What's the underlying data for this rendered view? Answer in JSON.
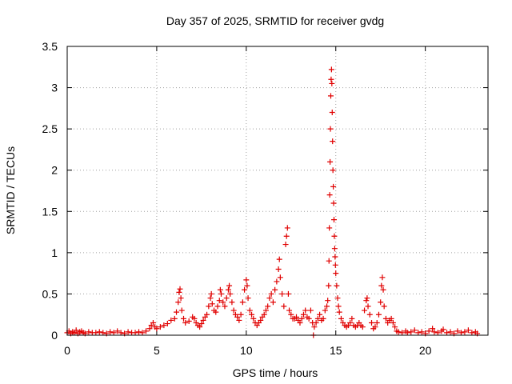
{
  "chart_data": {
    "type": "scatter",
    "title": "Day 357 of 2025, SRMTID for receiver gvdg",
    "xlabel": "GPS time / hours",
    "ylabel": "SRMTID / TECUs",
    "xlim": [
      0,
      23.5
    ],
    "ylim": [
      0,
      3.5
    ],
    "x_ticks": [
      0,
      5,
      10,
      15,
      20
    ],
    "x_tick_labels": [
      "0",
      "5",
      "10",
      "15",
      "20"
    ],
    "y_ticks": [
      0,
      0.5,
      1,
      1.5,
      2,
      2.5,
      3,
      3.5
    ],
    "y_tick_labels": [
      "0",
      "0.5",
      "1",
      "1.5",
      "2",
      "2.5",
      "3",
      "3.5"
    ],
    "grid": true,
    "marker": "plus",
    "series": [
      {
        "name": "gvdg",
        "color": "#e00000",
        "points": [
          [
            0.0,
            0.03
          ],
          [
            0.1,
            0.05
          ],
          [
            0.2,
            0.02
          ],
          [
            0.3,
            0.04
          ],
          [
            0.4,
            0.03
          ],
          [
            0.5,
            0.06
          ],
          [
            0.6,
            0.02
          ],
          [
            0.7,
            0.04
          ],
          [
            0.8,
            0.05
          ],
          [
            0.9,
            0.03
          ],
          [
            1.0,
            0.02
          ],
          [
            1.2,
            0.04
          ],
          [
            1.4,
            0.03
          ],
          [
            1.6,
            0.03
          ],
          [
            1.8,
            0.04
          ],
          [
            2.0,
            0.03
          ],
          [
            2.2,
            0.02
          ],
          [
            2.4,
            0.04
          ],
          [
            2.6,
            0.03
          ],
          [
            2.8,
            0.05
          ],
          [
            3.0,
            0.03
          ],
          [
            3.2,
            0.02
          ],
          [
            3.4,
            0.04
          ],
          [
            3.6,
            0.03
          ],
          [
            3.8,
            0.03
          ],
          [
            4.0,
            0.04
          ],
          [
            4.2,
            0.03
          ],
          [
            4.4,
            0.05
          ],
          [
            4.6,
            0.08
          ],
          [
            4.7,
            0.12
          ],
          [
            4.8,
            0.15
          ],
          [
            4.9,
            0.1
          ],
          [
            5.0,
            0.08
          ],
          [
            5.2,
            0.1
          ],
          [
            5.4,
            0.12
          ],
          [
            5.6,
            0.14
          ],
          [
            5.8,
            0.18
          ],
          [
            6.0,
            0.2
          ],
          [
            6.1,
            0.28
          ],
          [
            6.2,
            0.4
          ],
          [
            6.25,
            0.52
          ],
          [
            6.3,
            0.56
          ],
          [
            6.35,
            0.45
          ],
          [
            6.4,
            0.3
          ],
          [
            6.5,
            0.2
          ],
          [
            6.6,
            0.15
          ],
          [
            6.8,
            0.17
          ],
          [
            7.0,
            0.22
          ],
          [
            7.1,
            0.2
          ],
          [
            7.2,
            0.15
          ],
          [
            7.3,
            0.12
          ],
          [
            7.4,
            0.1
          ],
          [
            7.5,
            0.14
          ],
          [
            7.6,
            0.18
          ],
          [
            7.7,
            0.22
          ],
          [
            7.8,
            0.25
          ],
          [
            7.9,
            0.35
          ],
          [
            8.0,
            0.45
          ],
          [
            8.05,
            0.5
          ],
          [
            8.1,
            0.38
          ],
          [
            8.2,
            0.3
          ],
          [
            8.3,
            0.28
          ],
          [
            8.4,
            0.35
          ],
          [
            8.5,
            0.42
          ],
          [
            8.55,
            0.55
          ],
          [
            8.6,
            0.5
          ],
          [
            8.7,
            0.4
          ],
          [
            8.8,
            0.35
          ],
          [
            8.9,
            0.45
          ],
          [
            9.0,
            0.55
          ],
          [
            9.05,
            0.6
          ],
          [
            9.1,
            0.5
          ],
          [
            9.2,
            0.4
          ],
          [
            9.3,
            0.3
          ],
          [
            9.4,
            0.25
          ],
          [
            9.5,
            0.22
          ],
          [
            9.6,
            0.18
          ],
          [
            9.7,
            0.25
          ],
          [
            9.8,
            0.4
          ],
          [
            9.9,
            0.55
          ],
          [
            10.0,
            0.67
          ],
          [
            10.05,
            0.6
          ],
          [
            10.1,
            0.45
          ],
          [
            10.2,
            0.3
          ],
          [
            10.3,
            0.25
          ],
          [
            10.4,
            0.2
          ],
          [
            10.5,
            0.15
          ],
          [
            10.6,
            0.12
          ],
          [
            10.7,
            0.15
          ],
          [
            10.8,
            0.18
          ],
          [
            10.9,
            0.22
          ],
          [
            11.0,
            0.25
          ],
          [
            11.1,
            0.3
          ],
          [
            11.2,
            0.35
          ],
          [
            11.3,
            0.45
          ],
          [
            11.4,
            0.5
          ],
          [
            11.5,
            0.4
          ],
          [
            11.6,
            0.55
          ],
          [
            11.7,
            0.65
          ],
          [
            11.8,
            0.8
          ],
          [
            11.85,
            0.92
          ],
          [
            11.9,
            0.7
          ],
          [
            12.0,
            0.5
          ],
          [
            12.1,
            0.35
          ],
          [
            12.2,
            1.1
          ],
          [
            12.25,
            1.2
          ],
          [
            12.3,
            1.3
          ],
          [
            12.35,
            0.5
          ],
          [
            12.4,
            0.3
          ],
          [
            12.5,
            0.25
          ],
          [
            12.6,
            0.2
          ],
          [
            12.7,
            0.2
          ],
          [
            12.8,
            0.22
          ],
          [
            12.9,
            0.18
          ],
          [
            13.0,
            0.15
          ],
          [
            13.1,
            0.2
          ],
          [
            13.2,
            0.25
          ],
          [
            13.3,
            0.3
          ],
          [
            13.4,
            0.22
          ],
          [
            13.5,
            0.2
          ],
          [
            13.6,
            0.3
          ],
          [
            13.7,
            0.15
          ],
          [
            13.75,
            0.0
          ],
          [
            13.8,
            0.1
          ],
          [
            13.9,
            0.15
          ],
          [
            14.0,
            0.2
          ],
          [
            14.1,
            0.25
          ],
          [
            14.2,
            0.18
          ],
          [
            14.3,
            0.2
          ],
          [
            14.4,
            0.3
          ],
          [
            14.5,
            0.35
          ],
          [
            14.55,
            0.42
          ],
          [
            14.6,
            0.6
          ],
          [
            14.62,
            0.9
          ],
          [
            14.64,
            1.3
          ],
          [
            14.66,
            1.7
          ],
          [
            14.68,
            2.1
          ],
          [
            14.7,
            2.5
          ],
          [
            14.72,
            2.9
          ],
          [
            14.74,
            3.1
          ],
          [
            14.76,
            3.22
          ],
          [
            14.78,
            3.05
          ],
          [
            14.8,
            2.7
          ],
          [
            14.82,
            2.35
          ],
          [
            14.84,
            2.0
          ],
          [
            14.86,
            1.8
          ],
          [
            14.88,
            1.6
          ],
          [
            14.9,
            1.4
          ],
          [
            14.92,
            1.2
          ],
          [
            14.94,
            1.05
          ],
          [
            14.96,
            0.95
          ],
          [
            14.98,
            0.85
          ],
          [
            15.0,
            0.75
          ],
          [
            15.05,
            0.6
          ],
          [
            15.1,
            0.45
          ],
          [
            15.15,
            0.35
          ],
          [
            15.2,
            0.28
          ],
          [
            15.3,
            0.2
          ],
          [
            15.4,
            0.15
          ],
          [
            15.5,
            0.12
          ],
          [
            15.6,
            0.1
          ],
          [
            15.7,
            0.12
          ],
          [
            15.8,
            0.15
          ],
          [
            15.9,
            0.2
          ],
          [
            16.0,
            0.12
          ],
          [
            16.1,
            0.1
          ],
          [
            16.2,
            0.12
          ],
          [
            16.3,
            0.15
          ],
          [
            16.4,
            0.12
          ],
          [
            16.5,
            0.1
          ],
          [
            16.6,
            0.3
          ],
          [
            16.7,
            0.42
          ],
          [
            16.75,
            0.45
          ],
          [
            16.8,
            0.35
          ],
          [
            16.9,
            0.25
          ],
          [
            17.0,
            0.15
          ],
          [
            17.1,
            0.08
          ],
          [
            17.2,
            0.1
          ],
          [
            17.3,
            0.15
          ],
          [
            17.4,
            0.25
          ],
          [
            17.5,
            0.4
          ],
          [
            17.55,
            0.6
          ],
          [
            17.6,
            0.7
          ],
          [
            17.65,
            0.55
          ],
          [
            17.7,
            0.35
          ],
          [
            17.8,
            0.2
          ],
          [
            17.9,
            0.15
          ],
          [
            18.0,
            0.18
          ],
          [
            18.1,
            0.2
          ],
          [
            18.2,
            0.15
          ],
          [
            18.3,
            0.1
          ],
          [
            18.4,
            0.05
          ],
          [
            18.5,
            0.04
          ],
          [
            18.7,
            0.03
          ],
          [
            18.9,
            0.05
          ],
          [
            19.0,
            0.03
          ],
          [
            19.2,
            0.04
          ],
          [
            19.4,
            0.06
          ],
          [
            19.6,
            0.03
          ],
          [
            19.8,
            0.04
          ],
          [
            20.0,
            0.02
          ],
          [
            20.2,
            0.05
          ],
          [
            20.4,
            0.08
          ],
          [
            20.5,
            0.04
          ],
          [
            20.7,
            0.03
          ],
          [
            20.9,
            0.05
          ],
          [
            21.0,
            0.07
          ],
          [
            21.2,
            0.03
          ],
          [
            21.4,
            0.04
          ],
          [
            21.6,
            0.02
          ],
          [
            21.8,
            0.05
          ],
          [
            22.0,
            0.03
          ],
          [
            22.2,
            0.04
          ],
          [
            22.4,
            0.06
          ],
          [
            22.6,
            0.03
          ],
          [
            22.8,
            0.04
          ],
          [
            22.9,
            0.02
          ]
        ]
      }
    ]
  }
}
